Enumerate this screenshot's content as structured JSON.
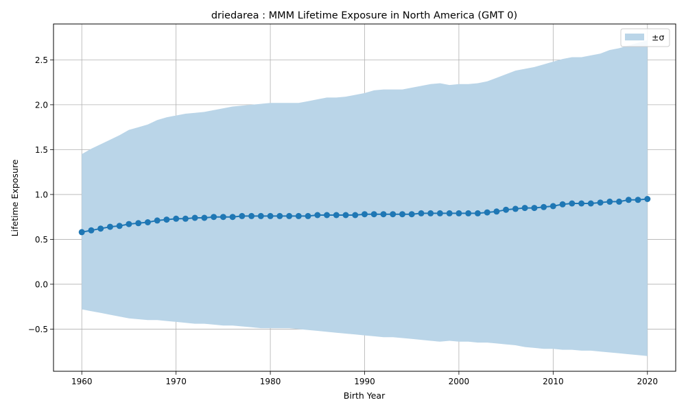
{
  "chart_data": {
    "type": "line",
    "title": "driedarea : MMM Lifetime Exposure in North America (GMT 0)",
    "xlabel": "Birth Year",
    "ylabel": "Lifetime Exposure",
    "xlim": [
      1957,
      2023
    ],
    "ylim": [
      -0.97,
      2.9
    ],
    "xticks": [
      1960,
      1970,
      1980,
      1990,
      2000,
      2010,
      2020
    ],
    "xtick_labels": [
      "1960",
      "1970",
      "1980",
      "1990",
      "2000",
      "2010",
      "2020"
    ],
    "yticks": [
      -0.5,
      0.0,
      0.5,
      1.0,
      1.5,
      2.0,
      2.5
    ],
    "ytick_labels": [
      "−0.5",
      "0.0",
      "0.5",
      "1.0",
      "1.5",
      "2.0",
      "2.5"
    ],
    "grid": true,
    "legend": {
      "position": "top-right",
      "entries": [
        "±σ"
      ]
    },
    "colors": {
      "line": "#1f77b4",
      "band": "#bad5e8",
      "grid": "#b0b0b0"
    },
    "x": [
      1960,
      1961,
      1962,
      1963,
      1964,
      1965,
      1966,
      1967,
      1968,
      1969,
      1970,
      1971,
      1972,
      1973,
      1974,
      1975,
      1976,
      1977,
      1978,
      1979,
      1980,
      1981,
      1982,
      1983,
      1984,
      1985,
      1986,
      1987,
      1988,
      1989,
      1990,
      1991,
      1992,
      1993,
      1994,
      1995,
      1996,
      1997,
      1998,
      1999,
      2000,
      2001,
      2002,
      2003,
      2004,
      2005,
      2006,
      2007,
      2008,
      2009,
      2010,
      2011,
      2012,
      2013,
      2014,
      2015,
      2016,
      2017,
      2018,
      2019,
      2020
    ],
    "series": [
      {
        "values": [
          0.58,
          0.6,
          0.62,
          0.64,
          0.65,
          0.67,
          0.68,
          0.69,
          0.71,
          0.72,
          0.73,
          0.73,
          0.74,
          0.74,
          0.75,
          0.75,
          0.75,
          0.76,
          0.76,
          0.76,
          0.76,
          0.76,
          0.76,
          0.76,
          0.76,
          0.77,
          0.77,
          0.77,
          0.77,
          0.77,
          0.78,
          0.78,
          0.78,
          0.78,
          0.78,
          0.78,
          0.79,
          0.79,
          0.79,
          0.79,
          0.79,
          0.79,
          0.79,
          0.8,
          0.81,
          0.83,
          0.84,
          0.85,
          0.85,
          0.86,
          0.87,
          0.89,
          0.9,
          0.9,
          0.9,
          0.91,
          0.92,
          0.92,
          0.94,
          0.94,
          0.95
        ]
      }
    ],
    "band": {
      "name": "±σ",
      "upper": [
        1.45,
        1.51,
        1.56,
        1.61,
        1.66,
        1.72,
        1.75,
        1.78,
        1.83,
        1.86,
        1.88,
        1.9,
        1.91,
        1.92,
        1.94,
        1.96,
        1.98,
        1.99,
        2.0,
        2.01,
        2.02,
        2.02,
        2.02,
        2.02,
        2.04,
        2.06,
        2.08,
        2.08,
        2.09,
        2.11,
        2.13,
        2.16,
        2.17,
        2.17,
        2.17,
        2.19,
        2.21,
        2.23,
        2.24,
        2.22,
        2.23,
        2.23,
        2.24,
        2.26,
        2.3,
        2.34,
        2.38,
        2.4,
        2.42,
        2.45,
        2.48,
        2.51,
        2.53,
        2.53,
        2.55,
        2.57,
        2.61,
        2.63,
        2.66,
        2.69,
        2.72
      ],
      "lower": [
        -0.28,
        -0.3,
        -0.32,
        -0.34,
        -0.36,
        -0.38,
        -0.39,
        -0.4,
        -0.4,
        -0.41,
        -0.42,
        -0.43,
        -0.44,
        -0.44,
        -0.45,
        -0.46,
        -0.46,
        -0.47,
        -0.48,
        -0.49,
        -0.49,
        -0.49,
        -0.49,
        -0.5,
        -0.51,
        -0.52,
        -0.53,
        -0.54,
        -0.55,
        -0.56,
        -0.57,
        -0.58,
        -0.59,
        -0.59,
        -0.6,
        -0.61,
        -0.62,
        -0.63,
        -0.64,
        -0.63,
        -0.64,
        -0.64,
        -0.65,
        -0.65,
        -0.66,
        -0.67,
        -0.68,
        -0.7,
        -0.71,
        -0.72,
        -0.72,
        -0.73,
        -0.73,
        -0.74,
        -0.74,
        -0.75,
        -0.76,
        -0.77,
        -0.78,
        -0.79,
        -0.8
      ]
    }
  }
}
